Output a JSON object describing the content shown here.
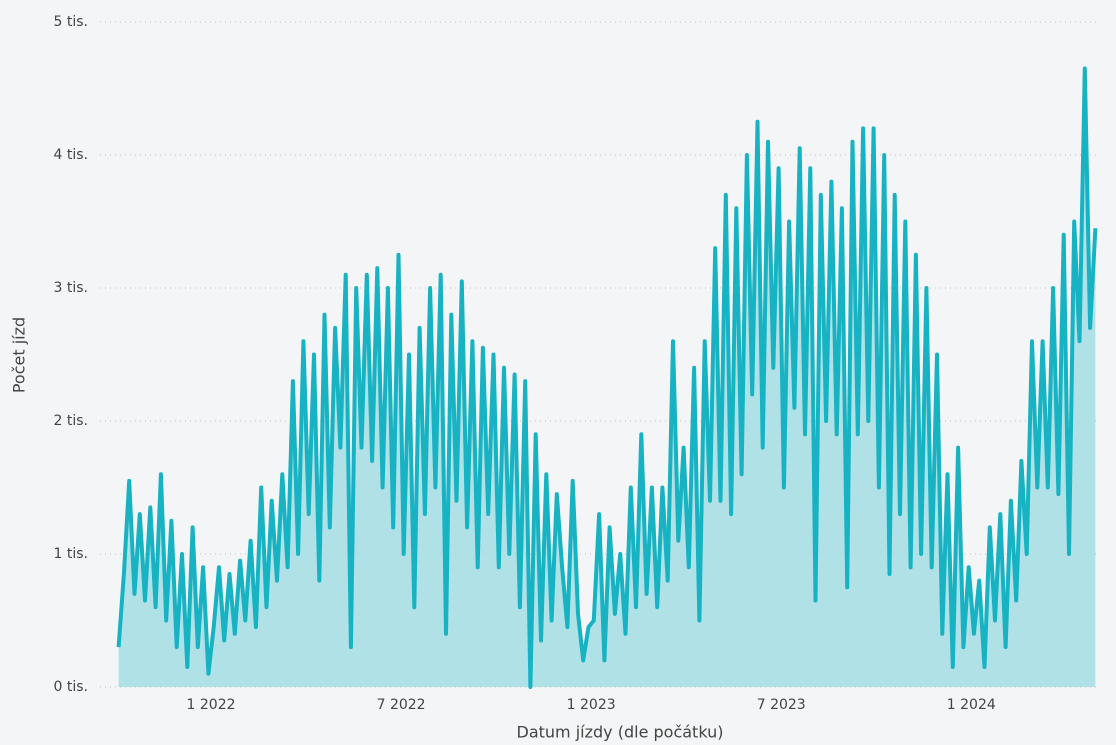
{
  "chart_data": {
    "type": "area",
    "x_label": "Datum jízdy (dle počátku)",
    "y_label": "Počet jízd",
    "x": [
      "2021-10",
      "2021-11",
      "2021-12",
      "2022-01",
      "2022-02",
      "2022-03",
      "2022-04",
      "2022-05",
      "2022-06",
      "2022-07",
      "2022-08",
      "2022-09",
      "2022-10",
      "2022-11",
      "2022-12",
      "2023-01",
      "2023-02",
      "2023-03",
      "2023-04",
      "2023-05",
      "2023-06",
      "2023-07",
      "2023-08",
      "2023-09",
      "2023-10",
      "2023-11",
      "2023-12",
      "2024-01",
      "2024-02",
      "2024-03",
      "2024-04"
    ],
    "xticks": [
      {
        "value": "2022-01",
        "label": "1 2022"
      },
      {
        "value": "2022-07",
        "label": "7 2022"
      },
      {
        "value": "2023-01",
        "label": "1 2023"
      },
      {
        "value": "2023-07",
        "label": "7 2023"
      },
      {
        "value": "2024-01",
        "label": "1 2024"
      }
    ],
    "values": [
      [
        300,
        850,
        1550,
        700,
        1300,
        650
      ],
      [
        1350,
        600,
        1600,
        500,
        1250,
        300
      ],
      [
        1000,
        150,
        1200,
        300,
        900,
        100
      ],
      [
        450,
        900,
        350,
        850,
        400,
        950
      ],
      [
        500,
        1100,
        450,
        1500,
        600,
        1400
      ],
      [
        800,
        1600,
        900,
        2300,
        1000,
        2600
      ],
      [
        1300,
        2500,
        800,
        2800,
        1200,
        2700
      ],
      [
        1800,
        3100,
        300,
        3000,
        1800,
        3100
      ],
      [
        1700,
        3150,
        1500,
        3000,
        1200,
        3250
      ],
      [
        1000,
        2500,
        600,
        2700,
        1300,
        3000
      ],
      [
        1500,
        3100,
        400,
        2800,
        1400,
        3050
      ],
      [
        1200,
        2600,
        900,
        2550,
        1300,
        2500
      ],
      [
        900,
        2400,
        1000,
        2350,
        600,
        2300
      ],
      [
        0,
        1900,
        350,
        1600,
        500,
        1450
      ],
      [
        900,
        450,
        1550,
        550,
        200,
        450
      ],
      [
        500,
        1300,
        200,
        1200,
        550,
        1000
      ],
      [
        400,
        1500,
        600,
        1900,
        700,
        1500
      ],
      [
        600,
        1500,
        800,
        2600,
        1100,
        1800
      ],
      [
        900,
        2400,
        500,
        2600,
        1400,
        3300
      ],
      [
        1400,
        3700,
        1300,
        3600,
        1600,
        4000
      ],
      [
        2200,
        4250,
        1800,
        4100,
        2400,
        3900
      ],
      [
        1500,
        3500,
        2100,
        4050,
        1900,
        3900
      ],
      [
        650,
        3700,
        2000,
        3800,
        1900,
        3600
      ],
      [
        750,
        4100,
        1900,
        4200,
        2000,
        4200
      ],
      [
        1500,
        4000,
        850,
        3700,
        1300,
        3500
      ],
      [
        900,
        3250,
        1000,
        3000,
        900,
        2500
      ],
      [
        400,
        1600,
        150,
        1800,
        300,
        900
      ],
      [
        400,
        800,
        150,
        1200,
        500,
        1300
      ],
      [
        300,
        1400,
        650,
        1700,
        1000,
        2600
      ],
      [
        1500,
        2600,
        1500,
        3000,
        1450,
        3400
      ],
      [
        1000,
        3500,
        2600,
        4650,
        2700,
        3450
      ]
    ],
    "color": "#17b3c3",
    "fill_color": "#a3dde4",
    "ylim": [
      0,
      5000
    ],
    "yticks": [
      {
        "value": 0,
        "label": "0 tis."
      },
      {
        "value": 1000,
        "label": "1 tis."
      },
      {
        "value": 2000,
        "label": "2 tis."
      },
      {
        "value": 3000,
        "label": "3 tis."
      },
      {
        "value": 4000,
        "label": "4 tis."
      },
      {
        "value": 5000,
        "label": "5 tis."
      }
    ],
    "grid": true
  }
}
